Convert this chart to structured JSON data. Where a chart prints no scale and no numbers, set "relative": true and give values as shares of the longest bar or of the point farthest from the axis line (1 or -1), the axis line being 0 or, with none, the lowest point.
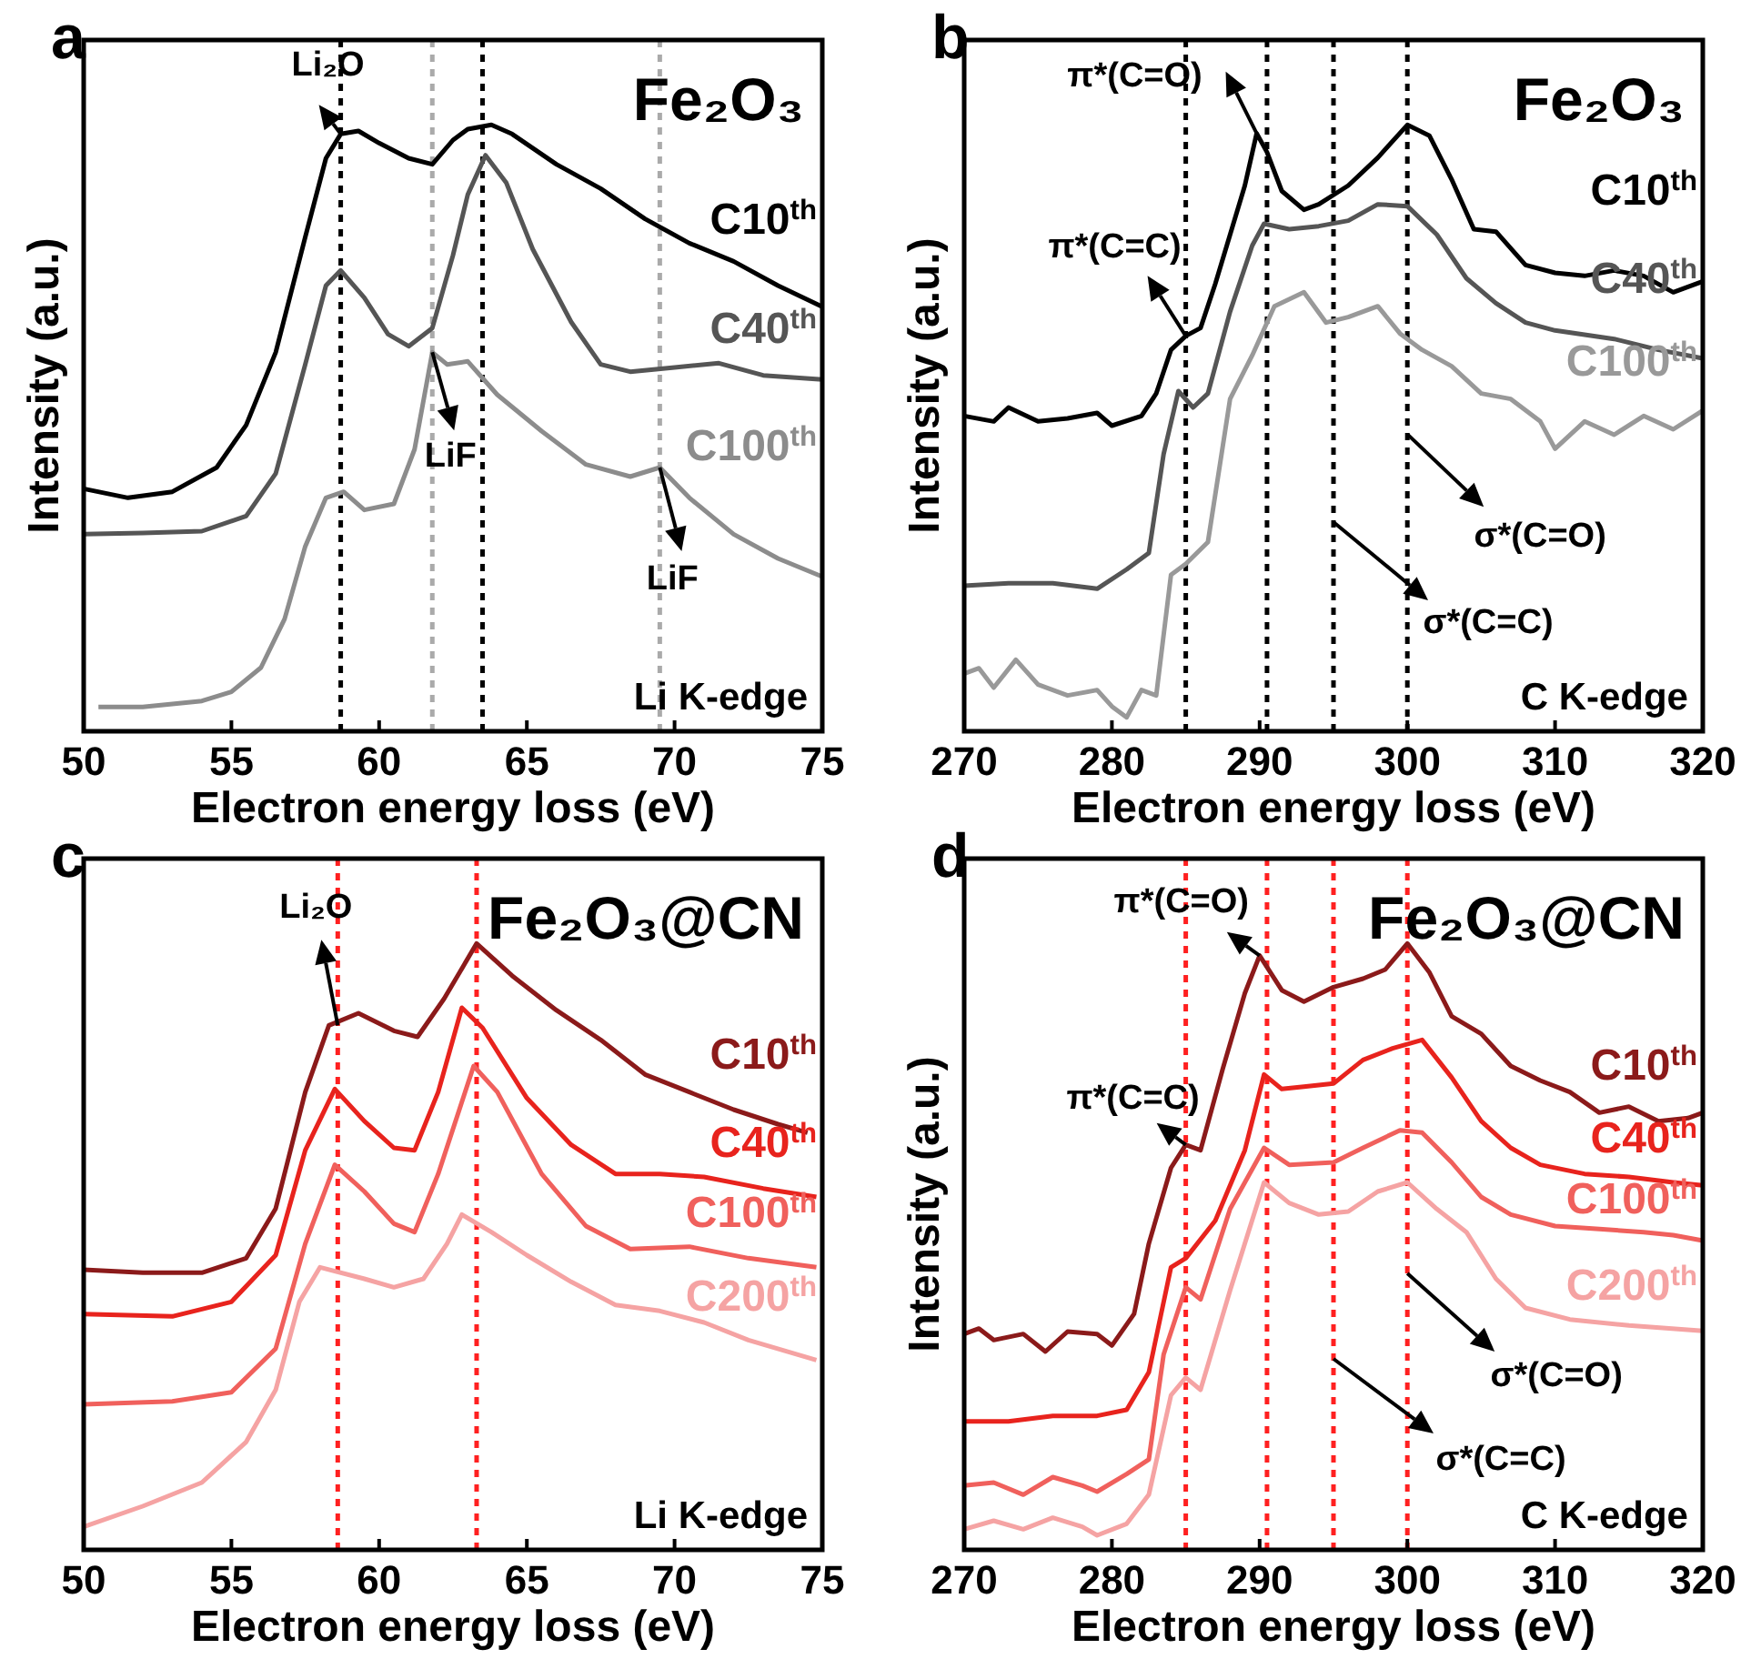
{
  "chart_data": [
    {
      "type": "line",
      "title": "Fe₂O₃",
      "xlabel": "Electron energy loss (eV)",
      "ylabel": "Intensity (a.u.)",
      "relative": true,
      "xlim": [
        50,
        75
      ],
      "xticks": [
        50,
        55,
        60,
        65,
        70,
        75
      ],
      "line_style": "solid",
      "series": [
        {
          "name": "C10$^{th}$",
          "color": "#000000",
          "x": [
            50,
            51.5,
            53,
            54.5,
            55.5,
            56.5,
            57.5,
            58.2,
            58.7,
            59.3,
            60,
            61,
            61.8,
            62.5,
            63,
            63.8,
            64.5,
            66,
            67.5,
            69,
            70.5,
            72,
            73.5,
            75
          ],
          "values": [
            0.4,
            0.385,
            0.395,
            0.435,
            0.505,
            0.625,
            0.815,
            0.945,
            0.985,
            0.99,
            0.97,
            0.945,
            0.935,
            0.975,
            0.993,
            1,
            0.985,
            0.935,
            0.895,
            0.845,
            0.805,
            0.775,
            0.735,
            0.7
          ]
        },
        {
          "name": "C40$^{th}$",
          "color": "#555555",
          "x": [
            50,
            52,
            54,
            55.5,
            56.5,
            57.5,
            58.2,
            58.7,
            59.5,
            60.3,
            61,
            61.8,
            62.5,
            63,
            63.6,
            64.3,
            65.2,
            66.5,
            67.5,
            68.5,
            70,
            71.5,
            73,
            75
          ],
          "values": [
            0.325,
            0.327,
            0.33,
            0.355,
            0.425,
            0.605,
            0.735,
            0.76,
            0.715,
            0.655,
            0.635,
            0.665,
            0.785,
            0.885,
            0.95,
            0.905,
            0.795,
            0.675,
            0.605,
            0.593,
            0.6,
            0.607,
            0.587,
            0.58
          ]
        },
        {
          "name": "C100$^{th}$",
          "color": "#8c8c8c",
          "x": [
            50.5,
            52,
            54,
            55,
            56,
            56.8,
            57.5,
            58.2,
            58.8,
            59.5,
            60.5,
            61.2,
            61.8,
            62.3,
            63,
            64,
            65.5,
            67,
            68.5,
            69.5,
            70.5,
            72,
            73.5,
            75
          ],
          "values": [
            0.04,
            0.04,
            0.05,
            0.065,
            0.105,
            0.185,
            0.305,
            0.385,
            0.395,
            0.365,
            0.375,
            0.465,
            0.625,
            0.605,
            0.61,
            0.555,
            0.495,
            0.44,
            0.42,
            0.435,
            0.385,
            0.325,
            0.285,
            0.255
          ]
        }
      ],
      "ref_lines": [
        {
          "axis": "x",
          "value": 58.7,
          "color": "#000000",
          "line_style": "dotted"
        },
        {
          "axis": "x",
          "value": 61.8,
          "color": "#aaaaaa",
          "line_style": "dotted"
        },
        {
          "axis": "x",
          "value": 63.5,
          "color": "#000000",
          "line_style": "dotted"
        },
        {
          "axis": "x",
          "value": 69.5,
          "color": "#aaaaaa",
          "line_style": "dotted"
        }
      ],
      "annotations": [
        "a",
        {
          "text": "Li₂O",
          "x": 58.7,
          "y": 0.985
        },
        {
          "text": "LiF",
          "x": 61.8,
          "y": 0.625
        },
        {
          "text": "LiF",
          "x": 69.5,
          "y": 0.435
        },
        "Li K-edge"
      ]
    },
    {
      "type": "line",
      "title": "Fe₂O₃",
      "xlabel": "Electron energy loss (eV)",
      "ylabel": "Intensity (a.u.)",
      "relative": true,
      "xlim": [
        270,
        320
      ],
      "xticks": [
        270,
        280,
        290,
        300,
        310,
        320
      ],
      "line_style": "solid",
      "series": [
        {
          "name": "C10$^{th}$",
          "color": "#000000",
          "x": [
            270,
            272,
            273,
            275,
            277,
            279,
            280,
            282,
            283,
            284,
            285,
            286,
            287,
            288,
            289,
            289.8,
            290.5,
            291.5,
            293,
            294,
            296,
            298,
            300,
            301.5,
            303,
            304.5,
            306,
            308,
            310,
            312,
            314,
            316,
            318,
            320
          ],
          "values": [
            0.52,
            0.511,
            0.534,
            0.511,
            0.516,
            0.525,
            0.504,
            0.52,
            0.557,
            0.629,
            0.652,
            0.665,
            0.738,
            0.819,
            0.9,
            0.986,
            0.955,
            0.891,
            0.86,
            0.869,
            0.9,
            0.946,
            1,
            0.982,
            0.91,
            0.828,
            0.824,
            0.769,
            0.756,
            0.751,
            0.76,
            0.751,
            0.724,
            0.742
          ]
        },
        {
          "name": "C40$^{th}$",
          "color": "#555555",
          "x": [
            270,
            273,
            276,
            279,
            281,
            282.5,
            283.5,
            284.5,
            285.5,
            286.5,
            288,
            289.5,
            290.3,
            292,
            294,
            296,
            298,
            300,
            302,
            304,
            306,
            308,
            310,
            314,
            317,
            320
          ],
          "values": [
            0.24,
            0.244,
            0.244,
            0.235,
            0.267,
            0.294,
            0.457,
            0.561,
            0.534,
            0.557,
            0.692,
            0.801,
            0.837,
            0.828,
            0.833,
            0.842,
            0.869,
            0.866,
            0.819,
            0.747,
            0.706,
            0.674,
            0.661,
            0.647,
            0.629,
            0.615
          ]
        },
        {
          "name": "C100$^{th}$",
          "color": "#999999",
          "x": [
            270,
            271,
            272,
            273.5,
            275,
            277,
            279,
            280,
            281,
            282,
            283,
            284,
            285,
            286.5,
            288,
            289.5,
            291,
            293,
            294.5,
            296,
            298,
            299.5,
            301,
            303,
            305,
            307,
            309,
            310,
            312,
            314,
            316,
            318,
            320
          ],
          "values": [
            0.095,
            0.104,
            0.072,
            0.118,
            0.077,
            0.059,
            0.068,
            0.041,
            0.023,
            0.068,
            0.059,
            0.258,
            0.276,
            0.312,
            0.548,
            0.62,
            0.701,
            0.724,
            0.674,
            0.683,
            0.701,
            0.656,
            0.629,
            0.602,
            0.557,
            0.548,
            0.511,
            0.466,
            0.511,
            0.489,
            0.52,
            0.498,
            0.529
          ]
        }
      ],
      "ref_lines": [
        {
          "axis": "x",
          "value": 285,
          "color": "#000000",
          "line_style": "dotted"
        },
        {
          "axis": "x",
          "value": 290.5,
          "color": "#000000",
          "line_style": "dotted"
        },
        {
          "axis": "x",
          "value": 295,
          "color": "#000000",
          "line_style": "dotted"
        },
        {
          "axis": "x",
          "value": 300,
          "color": "#000000",
          "line_style": "dotted"
        }
      ],
      "annotations": [
        "b",
        {
          "text": "π*(C=O)",
          "x": 289.8,
          "y": 0.986
        },
        {
          "text": "π*(C=C)",
          "x": 285,
          "y": 0.652
        },
        {
          "text": "σ*(C=O)",
          "x": 300,
          "y": 0.49
        },
        {
          "text": "σ*(C=C)",
          "x": 295,
          "y": 0.345
        },
        "C K-edge"
      ]
    },
    {
      "type": "line",
      "title": "Fe₂O₃@CN",
      "xlabel": "Electron energy loss (eV)",
      "relative": true,
      "xlim": [
        50,
        75
      ],
      "xticks": [
        50,
        55,
        60,
        65,
        70,
        75
      ],
      "line_style": "solid",
      "series": [
        {
          "name": "C10$^{th}$",
          "color": "#8b1a1a",
          "x": [
            50,
            52,
            54,
            55.5,
            56.5,
            57.5,
            58.3,
            59.3,
            60.5,
            61.3,
            62.2,
            63.3,
            64.5,
            66,
            67.5,
            69,
            70.5,
            72,
            73.5,
            74.5
          ],
          "values": [
            0.462,
            0.457,
            0.457,
            0.481,
            0.563,
            0.755,
            0.865,
            0.885,
            0.856,
            0.846,
            0.909,
            1,
            0.947,
            0.89,
            0.841,
            0.784,
            0.755,
            0.726,
            0.702,
            0.688
          ]
        },
        {
          "name": "C40$^{th}$",
          "color": "#e8231d",
          "x": [
            50,
            53,
            55,
            56.5,
            57.5,
            58.5,
            59.5,
            60.5,
            61.2,
            62,
            62.8,
            63.5,
            65,
            66.5,
            68,
            69.5,
            71,
            73,
            74.8
          ],
          "values": [
            0.389,
            0.385,
            0.409,
            0.486,
            0.659,
            0.76,
            0.707,
            0.663,
            0.659,
            0.755,
            0.894,
            0.861,
            0.745,
            0.668,
            0.62,
            0.62,
            0.615,
            0.596,
            0.582
          ]
        },
        {
          "name": "C100$^{th}$",
          "color": "#f0605c",
          "x": [
            50,
            53,
            55,
            56.5,
            57.5,
            58.5,
            59.5,
            60.5,
            61.2,
            62,
            63.2,
            64,
            65.5,
            67,
            68.5,
            70.5,
            72.5,
            74.8
          ],
          "values": [
            0.24,
            0.245,
            0.26,
            0.332,
            0.505,
            0.635,
            0.591,
            0.538,
            0.524,
            0.62,
            0.798,
            0.755,
            0.62,
            0.534,
            0.496,
            0.5,
            0.481,
            0.466
          ]
        },
        {
          "name": "C200$^{th}$",
          "color": "#f5a3a3",
          "x": [
            50,
            52,
            54,
            55.5,
            56.5,
            57.3,
            58,
            59.5,
            60.5,
            61.5,
            62.3,
            62.8,
            63.8,
            65,
            66.5,
            68,
            69.5,
            71,
            72.5,
            74.8
          ],
          "values": [
            0.038,
            0.072,
            0.111,
            0.178,
            0.264,
            0.409,
            0.466,
            0.447,
            0.433,
            0.447,
            0.505,
            0.553,
            0.524,
            0.486,
            0.442,
            0.404,
            0.394,
            0.375,
            0.346,
            0.313
          ]
        }
      ],
      "ref_lines": [
        {
          "axis": "x",
          "value": 58.6,
          "color": "#ff2020",
          "line_style": "dotted"
        },
        {
          "axis": "x",
          "value": 63.3,
          "color": "#ff2020",
          "line_style": "dotted"
        }
      ],
      "annotations": [
        "c",
        {
          "text": "Li₂O",
          "x": 58.6,
          "y": 0.865
        },
        "Li K-edge"
      ]
    },
    {
      "type": "line",
      "title": "Fe₂O₃@CN",
      "xlabel": "Electron energy loss (eV)",
      "ylabel": "Intensity (a.u.)",
      "relative": true,
      "xlim": [
        270,
        320
      ],
      "xticks": [
        270,
        280,
        290,
        300,
        310,
        320
      ],
      "line_style": "solid",
      "series": [
        {
          "name": "C10$^{th}$",
          "color": "#8b1a1a",
          "x": [
            270,
            271,
            272,
            274,
            275.5,
            277,
            279,
            280,
            281.5,
            282.5,
            284,
            285,
            286,
            287.5,
            289,
            290,
            291.5,
            293,
            295,
            297,
            298.5,
            300,
            301.5,
            303,
            305,
            307,
            309,
            311,
            313,
            315,
            317,
            319,
            320
          ],
          "values": [
            0.356,
            0.365,
            0.346,
            0.356,
            0.327,
            0.36,
            0.356,
            0.337,
            0.389,
            0.505,
            0.63,
            0.668,
            0.659,
            0.793,
            0.918,
            0.98,
            0.923,
            0.904,
            0.928,
            0.942,
            0.957,
            1,
            0.952,
            0.88,
            0.851,
            0.798,
            0.774,
            0.755,
            0.721,
            0.731,
            0.707,
            0.712,
            0.721
          ]
        },
        {
          "name": "C40$^{th}$",
          "color": "#e8231d",
          "x": [
            270,
            273,
            276,
            279,
            281,
            282.5,
            284,
            285,
            287,
            289,
            290.3,
            291.5,
            293,
            295,
            297,
            299,
            301,
            303,
            305,
            307,
            309,
            312,
            315,
            318,
            320
          ],
          "values": [
            0.212,
            0.212,
            0.221,
            0.221,
            0.231,
            0.293,
            0.466,
            0.481,
            0.543,
            0.659,
            0.784,
            0.76,
            0.764,
            0.769,
            0.808,
            0.827,
            0.841,
            0.779,
            0.707,
            0.663,
            0.635,
            0.62,
            0.615,
            0.606,
            0.601
          ]
        },
        {
          "name": "C100$^{th}$",
          "color": "#f0605c",
          "x": [
            270,
            272,
            274,
            276,
            278,
            279,
            281,
            282.5,
            283.5,
            285,
            286,
            288,
            290.3,
            292,
            295,
            297,
            299.5,
            301,
            303,
            305,
            307,
            310,
            313,
            316,
            318,
            320
          ],
          "values": [
            0.106,
            0.111,
            0.091,
            0.12,
            0.106,
            0.096,
            0.125,
            0.149,
            0.322,
            0.433,
            0.413,
            0.562,
            0.663,
            0.635,
            0.639,
            0.663,
            0.692,
            0.688,
            0.639,
            0.582,
            0.553,
            0.534,
            0.529,
            0.524,
            0.519,
            0.51
          ]
        },
        {
          "name": "C200$^{th}$",
          "color": "#f5a3a3",
          "x": [
            270,
            272,
            274,
            276,
            278,
            279,
            281,
            282.5,
            284,
            285,
            286,
            288,
            290.3,
            292,
            294,
            296,
            298,
            300,
            302,
            304,
            306,
            308,
            311,
            315,
            320
          ],
          "values": [
            0.034,
            0.048,
            0.034,
            0.053,
            0.038,
            0.024,
            0.043,
            0.091,
            0.255,
            0.284,
            0.264,
            0.428,
            0.606,
            0.572,
            0.553,
            0.558,
            0.591,
            0.606,
            0.562,
            0.524,
            0.447,
            0.399,
            0.38,
            0.37,
            0.361
          ]
        }
      ],
      "ref_lines": [
        {
          "axis": "x",
          "value": 285,
          "color": "#ff2020",
          "line_style": "dotted"
        },
        {
          "axis": "x",
          "value": 290.5,
          "color": "#ff2020",
          "line_style": "dotted"
        },
        {
          "axis": "x",
          "value": 295,
          "color": "#ff2020",
          "line_style": "dotted"
        },
        {
          "axis": "x",
          "value": 300,
          "color": "#ff2020",
          "line_style": "dotted"
        }
      ],
      "annotations": [
        "d",
        {
          "text": "π*(C=O)",
          "x": 290,
          "y": 0.98
        },
        {
          "text": "π*(C=C)",
          "x": 285,
          "y": 0.668
        },
        {
          "text": "σ*(C=O)",
          "x": 300,
          "y": 0.456
        },
        {
          "text": "σ*(C=C)",
          "x": 295,
          "y": 0.315
        },
        "C K-edge"
      ]
    }
  ]
}
